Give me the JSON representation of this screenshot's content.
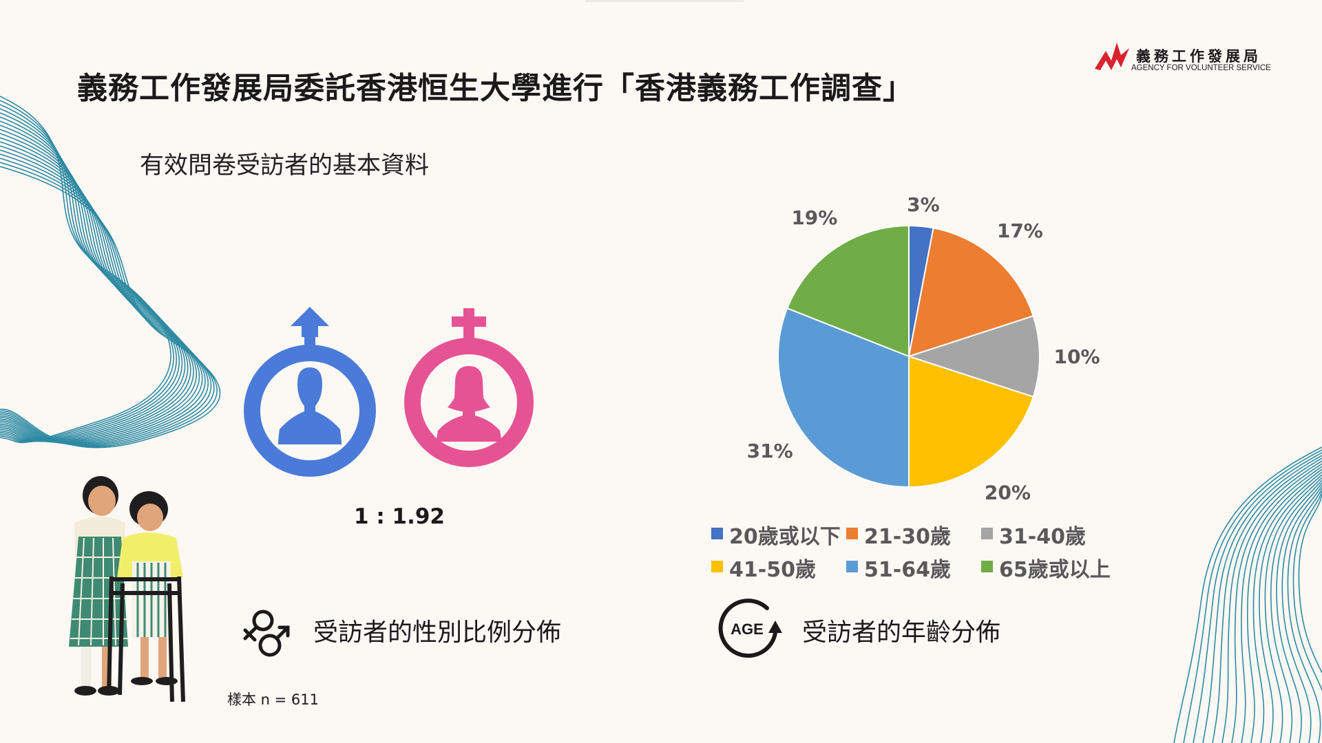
{
  "title": "義務工作發展局委託香港恒生大學進行「香港義務工作調查」",
  "subtitle": "有效問卷受訪者的基本資料",
  "logo": {
    "name_zh": "義務工作發展局",
    "name_en": "AGENCY  FOR  VOLUNTEER  SERVICE"
  },
  "gender": {
    "ratio": "1 : 1.92",
    "caption": "受訪者的性別比例分佈"
  },
  "sample_size": "樣本 n = 611",
  "age": {
    "caption": "受訪者的年齡分佈",
    "icon_text": "AGE"
  },
  "colors": {
    "male": "#4a7bd9",
    "female": "#e65394",
    "icon_dark": "#1a1a1a"
  },
  "chart_data": {
    "type": "pie",
    "categories": [
      "20歲或以下",
      "21-30歲",
      "31-40歲",
      "41-50歲",
      "51-64歲",
      "65歲或以上"
    ],
    "values": [
      3,
      17,
      10,
      20,
      31,
      19
    ],
    "labels": [
      "3%",
      "17%",
      "10%",
      "20%",
      "31%",
      "19%"
    ],
    "colors": [
      "#4472c4",
      "#ed7d31",
      "#a5a5a5",
      "#ffc000",
      "#5b9bd5",
      "#70ad47"
    ],
    "legend_position": "bottom"
  }
}
